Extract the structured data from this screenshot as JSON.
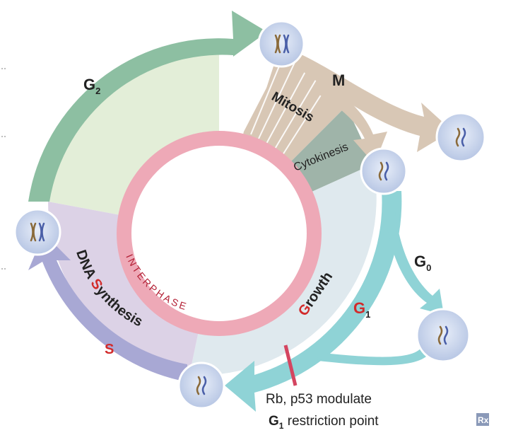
{
  "phases": {
    "g2": {
      "main": "G",
      "sub": "2"
    },
    "m": "M",
    "mitosis": "Mitosis",
    "cytokinesis": "Cytokinesis",
    "g0": {
      "main": "G",
      "sub": "0"
    },
    "g1": {
      "main": "G",
      "sub": "1"
    },
    "growth": {
      "initial": "G",
      "rest": "rowth"
    },
    "s": "S",
    "dna_synthesis": {
      "part1": "DNA ",
      "initial": "S",
      "rest": "ynthesis"
    }
  },
  "ring_label": "INTERPHASE",
  "restriction": {
    "line1": "Rb, p53 modulate",
    "line2_main": "G",
    "line2_sub": "1",
    "line2_rest": " restriction point"
  },
  "logo": "Rx",
  "colors": {
    "g2": "#8dbfa2",
    "g2_fill": "#e3eed8",
    "mitosis_fill": "#d8c7b5",
    "cytokinesis_fill": "#9fb4a9",
    "g1_arrow": "#8fd3d6",
    "g1_fill": "#dfe9ee",
    "s_arrow": "#a8a8d4",
    "s_fill": "#dcd2e6",
    "interphase_ring": "#eea9b7",
    "highlight_red": "#d22b2b",
    "cell": "#c9d6ee"
  }
}
